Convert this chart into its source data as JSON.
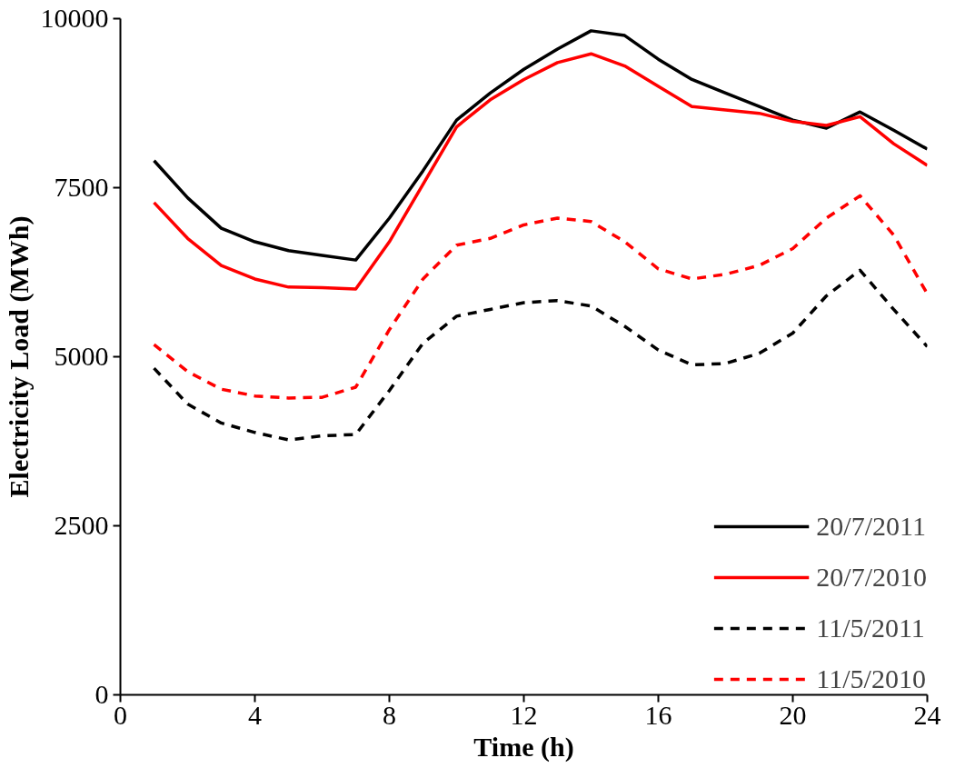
{
  "chart_data": {
    "type": "line",
    "xlabel": "Time (h)",
    "ylabel": "Electricity Load (MWh)",
    "x": [
      1,
      2,
      3,
      4,
      5,
      6,
      7,
      8,
      9,
      10,
      11,
      12,
      13,
      14,
      15,
      16,
      17,
      18,
      19,
      20,
      21,
      22,
      23,
      24
    ],
    "xlim": [
      0,
      24
    ],
    "xticks": [
      0,
      4,
      8,
      12,
      16,
      20,
      24
    ],
    "ylim": [
      0,
      10000
    ],
    "yticks": [
      0,
      2500,
      5000,
      7500,
      10000
    ],
    "grid": false,
    "legend": "bottom right",
    "marker": "none",
    "series": [
      {
        "name": "20/7/2011",
        "color": "#000000",
        "line_style": "solid",
        "values": [
          7900,
          7350,
          6900,
          6700,
          6570,
          6500,
          6430,
          7050,
          7750,
          8500,
          8900,
          9250,
          9550,
          9820,
          9750,
          9400,
          9100,
          8900,
          8700,
          8500,
          8380,
          8620,
          8350,
          8070
        ]
      },
      {
        "name": "20/7/2010",
        "color": "#ff0000",
        "line_style": "solid",
        "values": [
          7280,
          6750,
          6350,
          6150,
          6030,
          6020,
          6000,
          6700,
          7550,
          8400,
          8800,
          9100,
          9350,
          9480,
          9300,
          9000,
          8700,
          8650,
          8600,
          8480,
          8420,
          8550,
          8150,
          7830
        ]
      },
      {
        "name": "11/5/2011",
        "color": "#000000",
        "line_style": "dashed",
        "values": [
          4830,
          4300,
          4020,
          3880,
          3770,
          3830,
          3850,
          4500,
          5200,
          5600,
          5700,
          5800,
          5830,
          5750,
          5450,
          5100,
          4880,
          4900,
          5050,
          5350,
          5900,
          6280,
          5700,
          5150
        ]
      },
      {
        "name": "11/5/2010",
        "color": "#ff0000",
        "line_style": "dashed",
        "values": [
          5180,
          4780,
          4520,
          4420,
          4390,
          4400,
          4550,
          5400,
          6150,
          6650,
          6750,
          6950,
          7050,
          7000,
          6700,
          6300,
          6150,
          6220,
          6350,
          6600,
          7050,
          7380,
          6800,
          5930
        ]
      }
    ]
  }
}
